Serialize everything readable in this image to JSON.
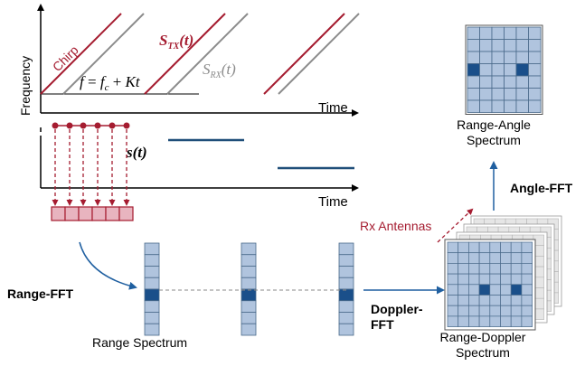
{
  "colors": {
    "tx": "#a51c30",
    "rx": "#8c8c8c",
    "blue_dark": "#1f4e79",
    "blue_mid": "#1f5fa0",
    "cell_fill": "#b0c4de",
    "cell_dark": "#1a4f8a",
    "pink_fill": "#e8b4bf",
    "text": "#000000"
  },
  "plot": {
    "y_label": "Frequency",
    "x_label_top": "Time",
    "x_label_bottom": "Time",
    "chirp_label": "Chirp",
    "formula": {
      "lhs": "f",
      "eq": " = ",
      "f": "f",
      "c": "c",
      "plus": " + ",
      "Kt": "Kt"
    },
    "s_tx": {
      "S": "S",
      "sub": "TX",
      "t": "(t)"
    },
    "s_rx": {
      "S": "S",
      "sub": "RX",
      "t": "(t)"
    },
    "s_if": "s(t)"
  },
  "labels": {
    "range_fft": "Range-FFT",
    "range_spectrum": "Range Spectrum",
    "doppler_fft_line1": "Doppler-",
    "doppler_fft_line2": "FFT",
    "rx_antennas": "Rx Antennas",
    "range_doppler_line1": "Range-Doppler",
    "range_doppler_line2": "Spectrum",
    "angle_fft": "Angle-FFT",
    "range_angle_line1": "Range-Angle",
    "range_angle_line2": "Spectrum"
  }
}
